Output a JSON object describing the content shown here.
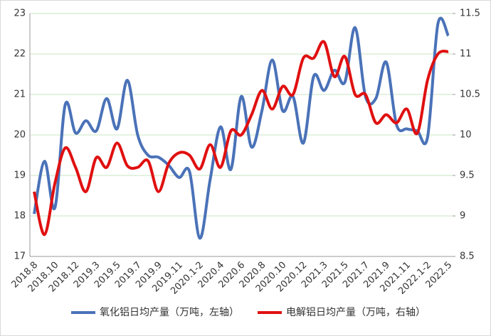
{
  "chart_data": {
    "type": "line",
    "categories": [
      "2018.8",
      null,
      "2018.10",
      null,
      "2018.12",
      null,
      "2019.3",
      null,
      "2019.5",
      null,
      "2019.7",
      null,
      "2019.9",
      null,
      "2019.11",
      null,
      "2020.1-2",
      null,
      "2020.4",
      null,
      "2020.6",
      null,
      "2020.8",
      null,
      "2020.10",
      null,
      "2020.12",
      null,
      "2021.3",
      null,
      "2021.5",
      null,
      "2021.7",
      null,
      "2021.9",
      null,
      "2021.11",
      null,
      "2022.1-2",
      null,
      "2022.5"
    ],
    "series": [
      {
        "name": "氧化铝日均产量（万吨，左轴）",
        "color": "#4a72b8",
        "values": [
          18.05,
          19.35,
          18.2,
          20.75,
          20.05,
          20.35,
          20.1,
          20.9,
          20.15,
          21.35,
          20.0,
          19.5,
          19.45,
          19.25,
          18.95,
          19.1,
          17.45,
          18.9,
          20.2,
          19.15,
          20.95,
          19.7,
          20.6,
          21.85,
          20.6,
          20.95,
          19.8,
          21.45,
          21.1,
          21.6,
          21.3,
          22.65,
          20.95,
          20.9,
          21.8,
          20.25,
          20.15,
          20.1,
          19.95,
          22.75,
          22.45
        ]
      },
      {
        "name": "电解铝日均产量（万吨，右轴）",
        "color": "#e01010",
        "axis": "y2",
        "values": [
          9.3,
          8.77,
          9.4,
          9.84,
          9.6,
          9.3,
          9.72,
          9.6,
          9.9,
          9.62,
          9.6,
          9.68,
          9.3,
          9.65,
          9.78,
          9.75,
          9.58,
          9.88,
          9.6,
          10.05,
          10.0,
          10.25,
          10.55,
          10.32,
          10.6,
          10.5,
          10.95,
          10.95,
          11.15,
          10.72,
          10.97,
          10.5,
          10.5,
          10.15,
          10.25,
          10.15,
          10.32,
          10.02,
          10.68,
          11.0,
          11.03
        ]
      }
    ],
    "ylim": [
      17,
      23
    ],
    "yticks": [
      17,
      18,
      19,
      20,
      21,
      22,
      23
    ],
    "y2lim": [
      8.5,
      11.5
    ],
    "y2ticks": [
      8.5,
      9,
      9.5,
      10,
      10.5,
      11,
      11.5
    ],
    "grid": true,
    "legend": "bottom"
  }
}
